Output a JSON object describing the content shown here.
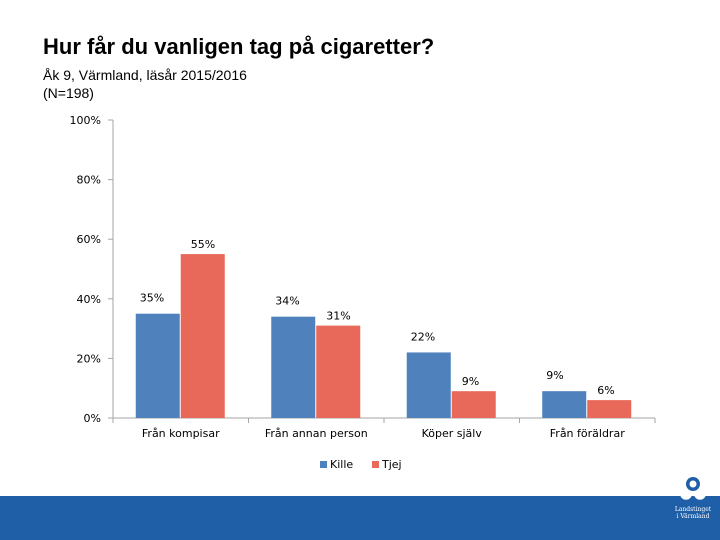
{
  "colors": {
    "accent": "#1f5fa8",
    "series": [
      "#4f81bd",
      "#e8695a"
    ]
  },
  "header": {
    "title": "Hur får du vanligen tag på cigaretter?",
    "subtitle_line1": "Åk 9, Värmland, läsår 2015/2016",
    "subtitle_line2": "(N=198)"
  },
  "logo": {
    "icon": "flower-icon",
    "text_line1": "Landstinget",
    "text_line2": "i Värmland"
  },
  "chart_data": {
    "type": "bar",
    "title": "Hur får du vanligen tag på cigaretter?",
    "categories": [
      "Från kompisar",
      "Från annan person",
      "Köper själv",
      "Från föräldrar"
    ],
    "series": [
      {
        "name": "Kille",
        "values": [
          35,
          34,
          22,
          9
        ]
      },
      {
        "name": "Tjej",
        "values": [
          55,
          31,
          9,
          6
        ]
      }
    ],
    "data_labels": [
      [
        "35%",
        "34%",
        "22%",
        "9%"
      ],
      [
        "55%",
        "31%",
        "9%",
        "6%"
      ]
    ],
    "ylim": [
      0,
      100
    ],
    "yticks": [
      0,
      20,
      40,
      60,
      80,
      100
    ],
    "ytick_labels": [
      "0%",
      "20%",
      "40%",
      "60%",
      "80%",
      "100%"
    ],
    "grid": false,
    "legend": "bottom"
  }
}
